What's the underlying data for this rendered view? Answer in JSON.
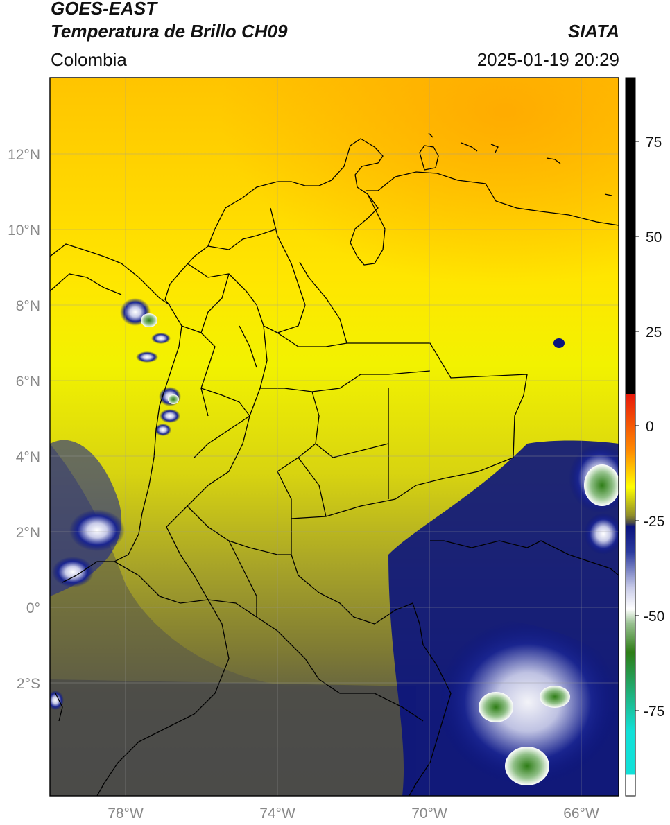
{
  "header": {
    "satellite": "GOES-EAST",
    "product": "Temperatura de Brillo CH09",
    "agency": "SIATA",
    "region": "Colombia",
    "timestamp": "2025-01-19 20:29"
  },
  "map": {
    "lat_labels": [
      "12°N",
      "10°N",
      "8°N",
      "6°N",
      "4°N",
      "2°N",
      "0°",
      "2°S"
    ],
    "lon_labels": [
      "78°W",
      "74°W",
      "70°W",
      "66°W"
    ],
    "extent": {
      "lon_min": -80,
      "lon_max": -65,
      "lat_min": -5,
      "lat_max": 14
    }
  },
  "colorbar": {
    "ticks": [
      "75",
      "50",
      "25",
      "0",
      "-25",
      "-50",
      "-75"
    ],
    "colors": {
      "black": "#000000",
      "red": "#e8190b",
      "orange": "#ffa600",
      "yellow": "#ffff00",
      "olive": "#8e8c2a",
      "gray": "#4a4a48",
      "navy": "#08117e",
      "white": "#ffffff",
      "green": "#2e7d16",
      "cyan": "#12e0d8"
    }
  }
}
